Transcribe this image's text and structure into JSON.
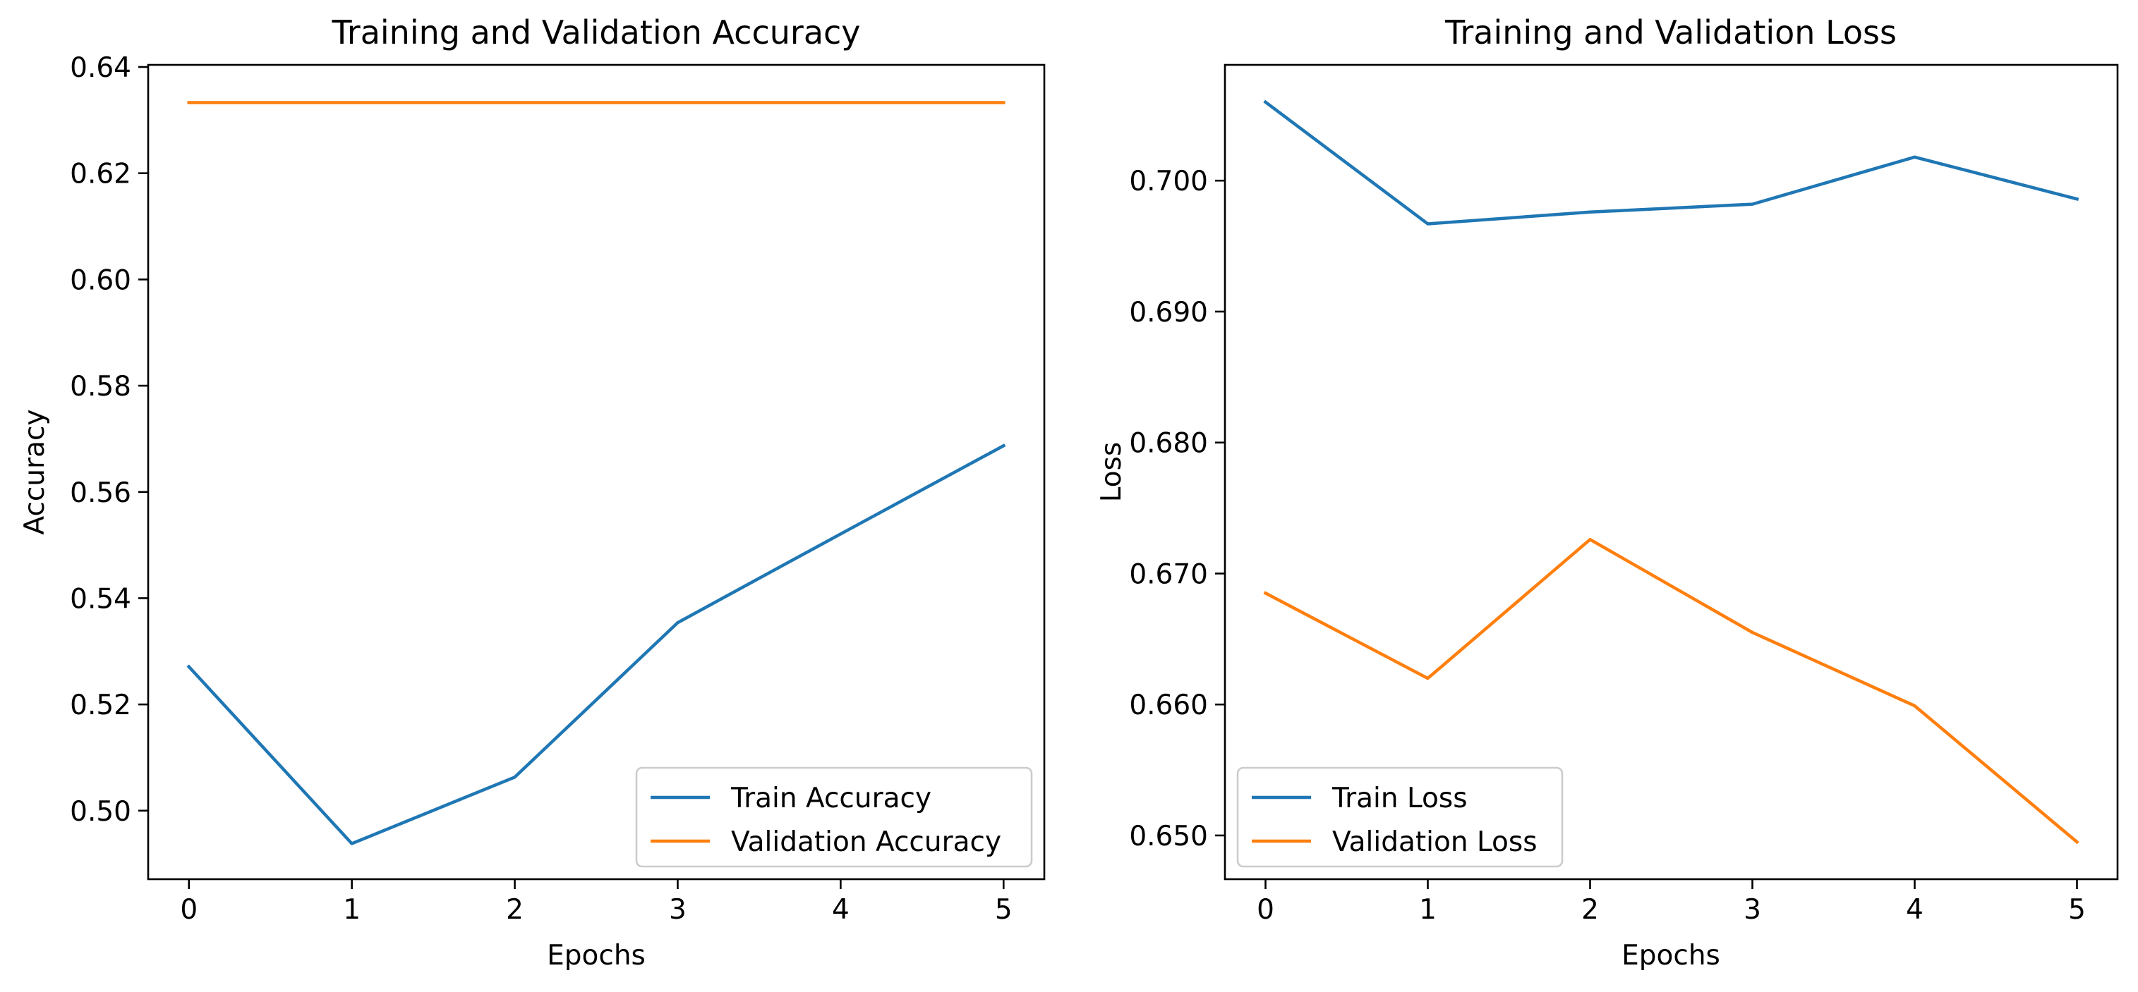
{
  "chart_data": [
    {
      "type": "line",
      "title": "Training and Validation Accuracy",
      "xlabel": "Epochs",
      "ylabel": "Accuracy",
      "x": [
        0,
        1,
        2,
        3,
        4,
        5
      ],
      "xticks": [
        "0",
        "1",
        "2",
        "3",
        "4",
        "5"
      ],
      "yticks": [
        "0.50",
        "0.52",
        "0.54",
        "0.56",
        "0.58",
        "0.60",
        "0.62",
        "0.64"
      ],
      "xlim": [
        -0.25,
        5.25
      ],
      "ylim": [
        0.4871,
        0.6404
      ],
      "grid": false,
      "legend_position": "lower-right",
      "series": [
        {
          "name": "Train Accuracy",
          "color": "#1f77b4",
          "values": [
            0.5271,
            0.4938,
            0.5063,
            0.5354,
            0.5521,
            0.5687
          ]
        },
        {
          "name": "Validation Accuracy",
          "color": "#ff7f0e",
          "values": [
            0.6333,
            0.6333,
            0.6333,
            0.6333,
            0.6333,
            0.6333
          ]
        }
      ]
    },
    {
      "type": "line",
      "title": "Training and Validation Loss",
      "xlabel": "Epochs",
      "ylabel": "Loss",
      "x": [
        0,
        1,
        2,
        3,
        4,
        5
      ],
      "xticks": [
        "0",
        "1",
        "2",
        "3",
        "4",
        "5"
      ],
      "yticks": [
        "0.650",
        "0.660",
        "0.670",
        "0.680",
        "0.690",
        "0.700"
      ],
      "xlim": [
        -0.25,
        5.25
      ],
      "ylim": [
        0.64666,
        0.70884
      ],
      "grid": false,
      "legend_position": "lower-left",
      "series": [
        {
          "name": "Train Loss",
          "color": "#1f77b4",
          "values": [
            0.706,
            0.6967,
            0.6976,
            0.6982,
            0.7018,
            0.6986
          ]
        },
        {
          "name": "Validation Loss",
          "color": "#ff7f0e",
          "values": [
            0.6685,
            0.662,
            0.6726,
            0.6655,
            0.6599,
            0.6495
          ]
        }
      ]
    }
  ]
}
